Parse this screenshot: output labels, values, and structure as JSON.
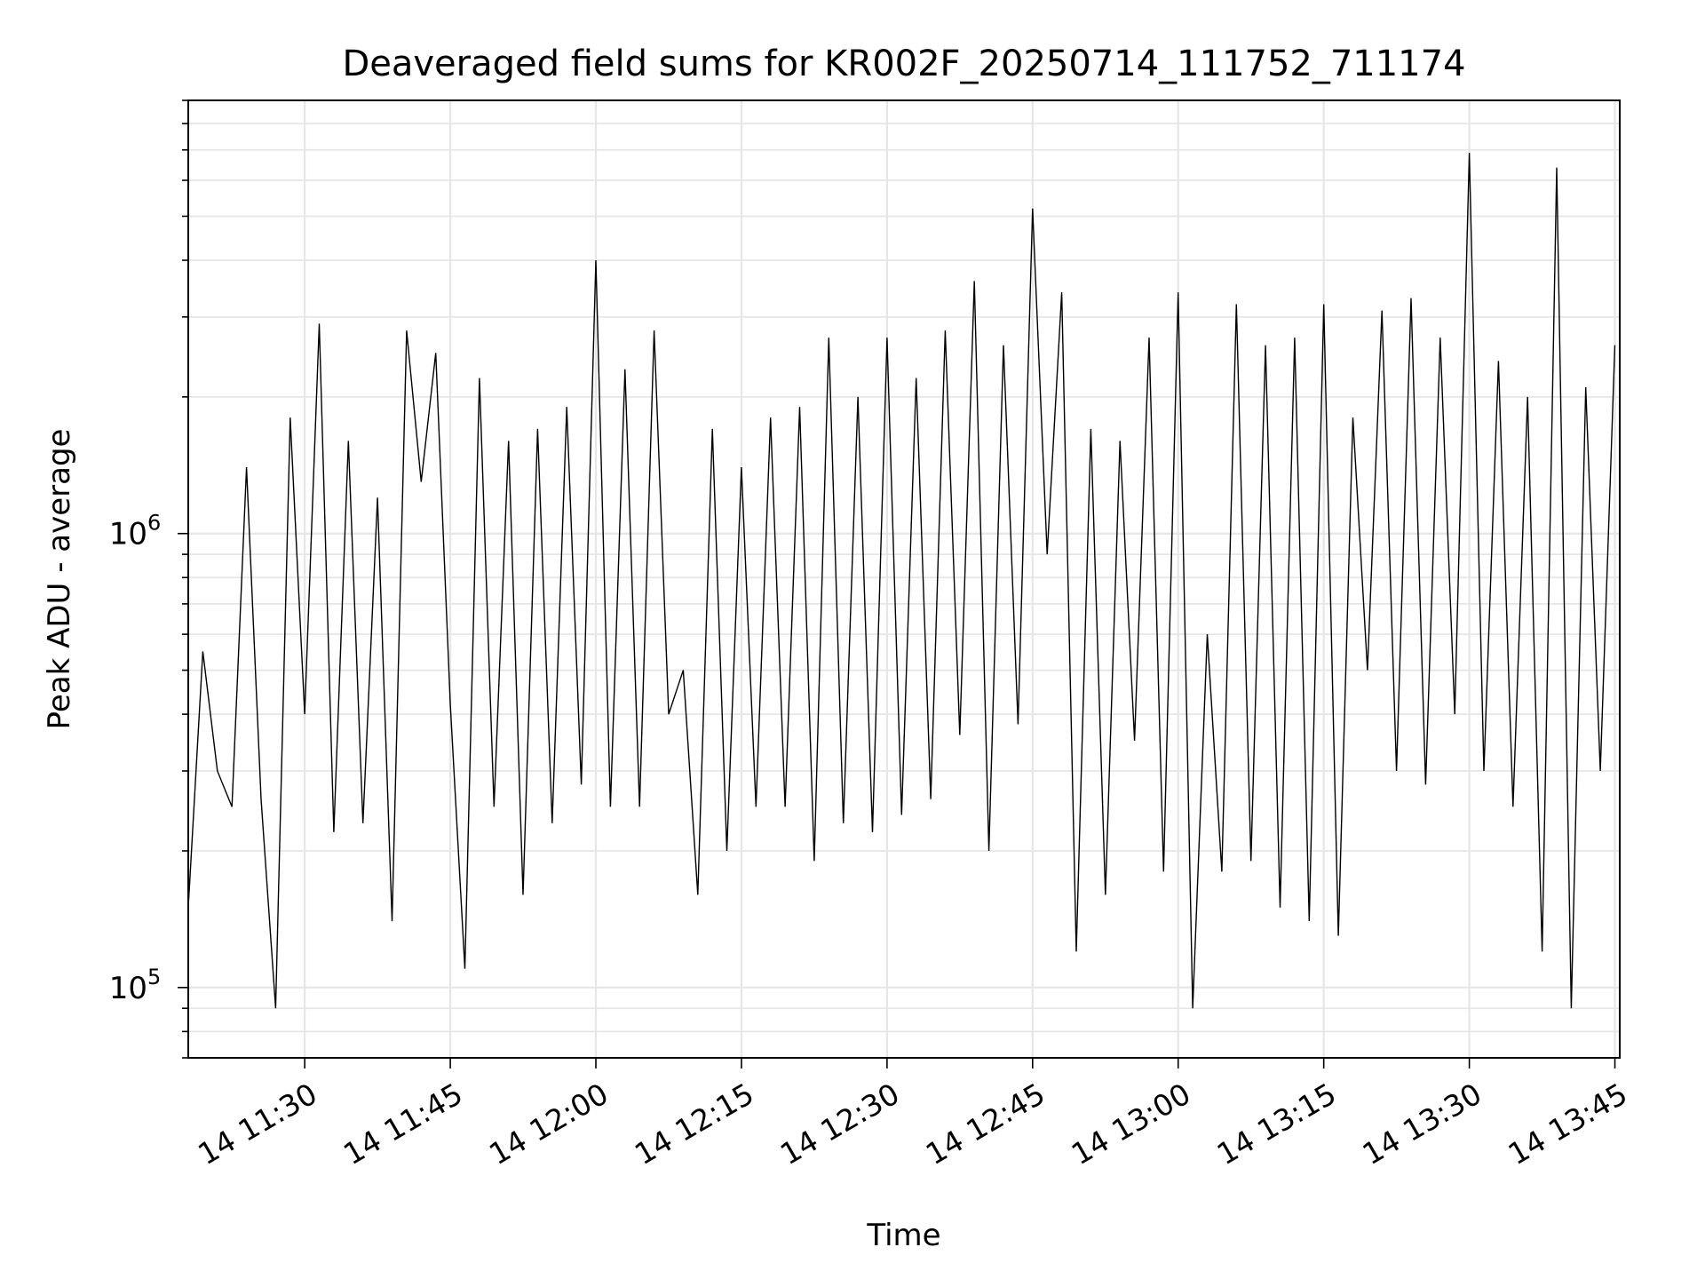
{
  "chart_data": {
    "type": "line",
    "title": "Deaveraged field sums for KR002F_20250714_111752_711174",
    "xlabel": "Time",
    "ylabel": "Peak ADU - average",
    "yscale": "log",
    "xlim": [
      "2025-07-14T11:18:00",
      "2025-07-14T13:45:30"
    ],
    "ylim": [
      70000,
      9000000
    ],
    "x_ticks": [
      "14 11:30",
      "14 11:45",
      "14 12:00",
      "14 12:15",
      "14 12:30",
      "14 12:45",
      "14 13:00",
      "14 13:15",
      "14 13:30",
      "14 13:45"
    ],
    "y_ticks": [
      {
        "base": "10",
        "exp": "5",
        "value": 100000
      },
      {
        "base": "10",
        "exp": "6",
        "value": 1000000
      }
    ],
    "grid": true,
    "line_color": "#000000",
    "series": [
      {
        "x": [
          "2025-07-14T11:18:00",
          "2025-07-14T11:19:30",
          "2025-07-14T11:21:00",
          "2025-07-14T11:22:30",
          "2025-07-14T11:24:00",
          "2025-07-14T11:25:30",
          "2025-07-14T11:27:00",
          "2025-07-14T11:28:30",
          "2025-07-14T11:30:00",
          "2025-07-14T11:31:30",
          "2025-07-14T11:33:00",
          "2025-07-14T11:34:30",
          "2025-07-14T11:36:00",
          "2025-07-14T11:37:30",
          "2025-07-14T11:39:00",
          "2025-07-14T11:40:30",
          "2025-07-14T11:42:00",
          "2025-07-14T11:43:30",
          "2025-07-14T11:45:00",
          "2025-07-14T11:46:30",
          "2025-07-14T11:48:00",
          "2025-07-14T11:49:30",
          "2025-07-14T11:51:00",
          "2025-07-14T11:52:30",
          "2025-07-14T11:54:00",
          "2025-07-14T11:55:30",
          "2025-07-14T11:57:00",
          "2025-07-14T11:58:30",
          "2025-07-14T12:00:00",
          "2025-07-14T12:01:30",
          "2025-07-14T12:03:00",
          "2025-07-14T12:04:30",
          "2025-07-14T12:06:00",
          "2025-07-14T12:07:30",
          "2025-07-14T12:09:00",
          "2025-07-14T12:10:30",
          "2025-07-14T12:12:00",
          "2025-07-14T12:13:30",
          "2025-07-14T12:15:00",
          "2025-07-14T12:16:30",
          "2025-07-14T12:18:00",
          "2025-07-14T12:19:30",
          "2025-07-14T12:21:00",
          "2025-07-14T12:22:30",
          "2025-07-14T12:24:00",
          "2025-07-14T12:25:30",
          "2025-07-14T12:27:00",
          "2025-07-14T12:28:30",
          "2025-07-14T12:30:00",
          "2025-07-14T12:31:30",
          "2025-07-14T12:33:00",
          "2025-07-14T12:34:30",
          "2025-07-14T12:36:00",
          "2025-07-14T12:37:30",
          "2025-07-14T12:39:00",
          "2025-07-14T12:40:30",
          "2025-07-14T12:42:00",
          "2025-07-14T12:43:30",
          "2025-07-14T12:45:00",
          "2025-07-14T12:46:30",
          "2025-07-14T12:48:00",
          "2025-07-14T12:49:30",
          "2025-07-14T12:51:00",
          "2025-07-14T12:52:30",
          "2025-07-14T12:54:00",
          "2025-07-14T12:55:30",
          "2025-07-14T12:57:00",
          "2025-07-14T12:58:30",
          "2025-07-14T13:00:00",
          "2025-07-14T13:01:30",
          "2025-07-14T13:03:00",
          "2025-07-14T13:04:30",
          "2025-07-14T13:06:00",
          "2025-07-14T13:07:30",
          "2025-07-14T13:09:00",
          "2025-07-14T13:10:30",
          "2025-07-14T13:12:00",
          "2025-07-14T13:13:30",
          "2025-07-14T13:15:00",
          "2025-07-14T13:16:30",
          "2025-07-14T13:18:00",
          "2025-07-14T13:19:30",
          "2025-07-14T13:21:00",
          "2025-07-14T13:22:30",
          "2025-07-14T13:24:00",
          "2025-07-14T13:25:30",
          "2025-07-14T13:27:00",
          "2025-07-14T13:28:30",
          "2025-07-14T13:30:00",
          "2025-07-14T13:31:30",
          "2025-07-14T13:33:00",
          "2025-07-14T13:34:30",
          "2025-07-14T13:36:00",
          "2025-07-14T13:37:30",
          "2025-07-14T13:39:00",
          "2025-07-14T13:40:30",
          "2025-07-14T13:42:00",
          "2025-07-14T13:43:30",
          "2025-07-14T13:45:00"
        ],
        "values": [
          150000,
          550000,
          300000,
          250000,
          1400000,
          260000,
          90000,
          1800000,
          400000,
          2900000,
          220000,
          1600000,
          230000,
          1200000,
          140000,
          2800000,
          1300000,
          2500000,
          420000,
          110000,
          2200000,
          250000,
          1600000,
          160000,
          1700000,
          230000,
          1900000,
          280000,
          4000000,
          250000,
          2300000,
          250000,
          2800000,
          400000,
          500000,
          160000,
          1700000,
          200000,
          1400000,
          250000,
          1800000,
          250000,
          1900000,
          190000,
          2700000,
          230000,
          2000000,
          220000,
          2700000,
          240000,
          2200000,
          260000,
          2800000,
          360000,
          3600000,
          200000,
          2600000,
          380000,
          5200000,
          900000,
          3400000,
          120000,
          1700000,
          160000,
          1600000,
          350000,
          2700000,
          180000,
          3400000,
          90000,
          600000,
          180000,
          3200000,
          190000,
          2600000,
          150000,
          2700000,
          140000,
          3200000,
          130000,
          1800000,
          500000,
          3100000,
          300000,
          3300000,
          280000,
          2700000,
          400000,
          6900000,
          300000,
          2400000,
          250000,
          2000000,
          120000,
          6400000,
          90000,
          2100000,
          300000,
          2600000
        ]
      }
    ]
  }
}
